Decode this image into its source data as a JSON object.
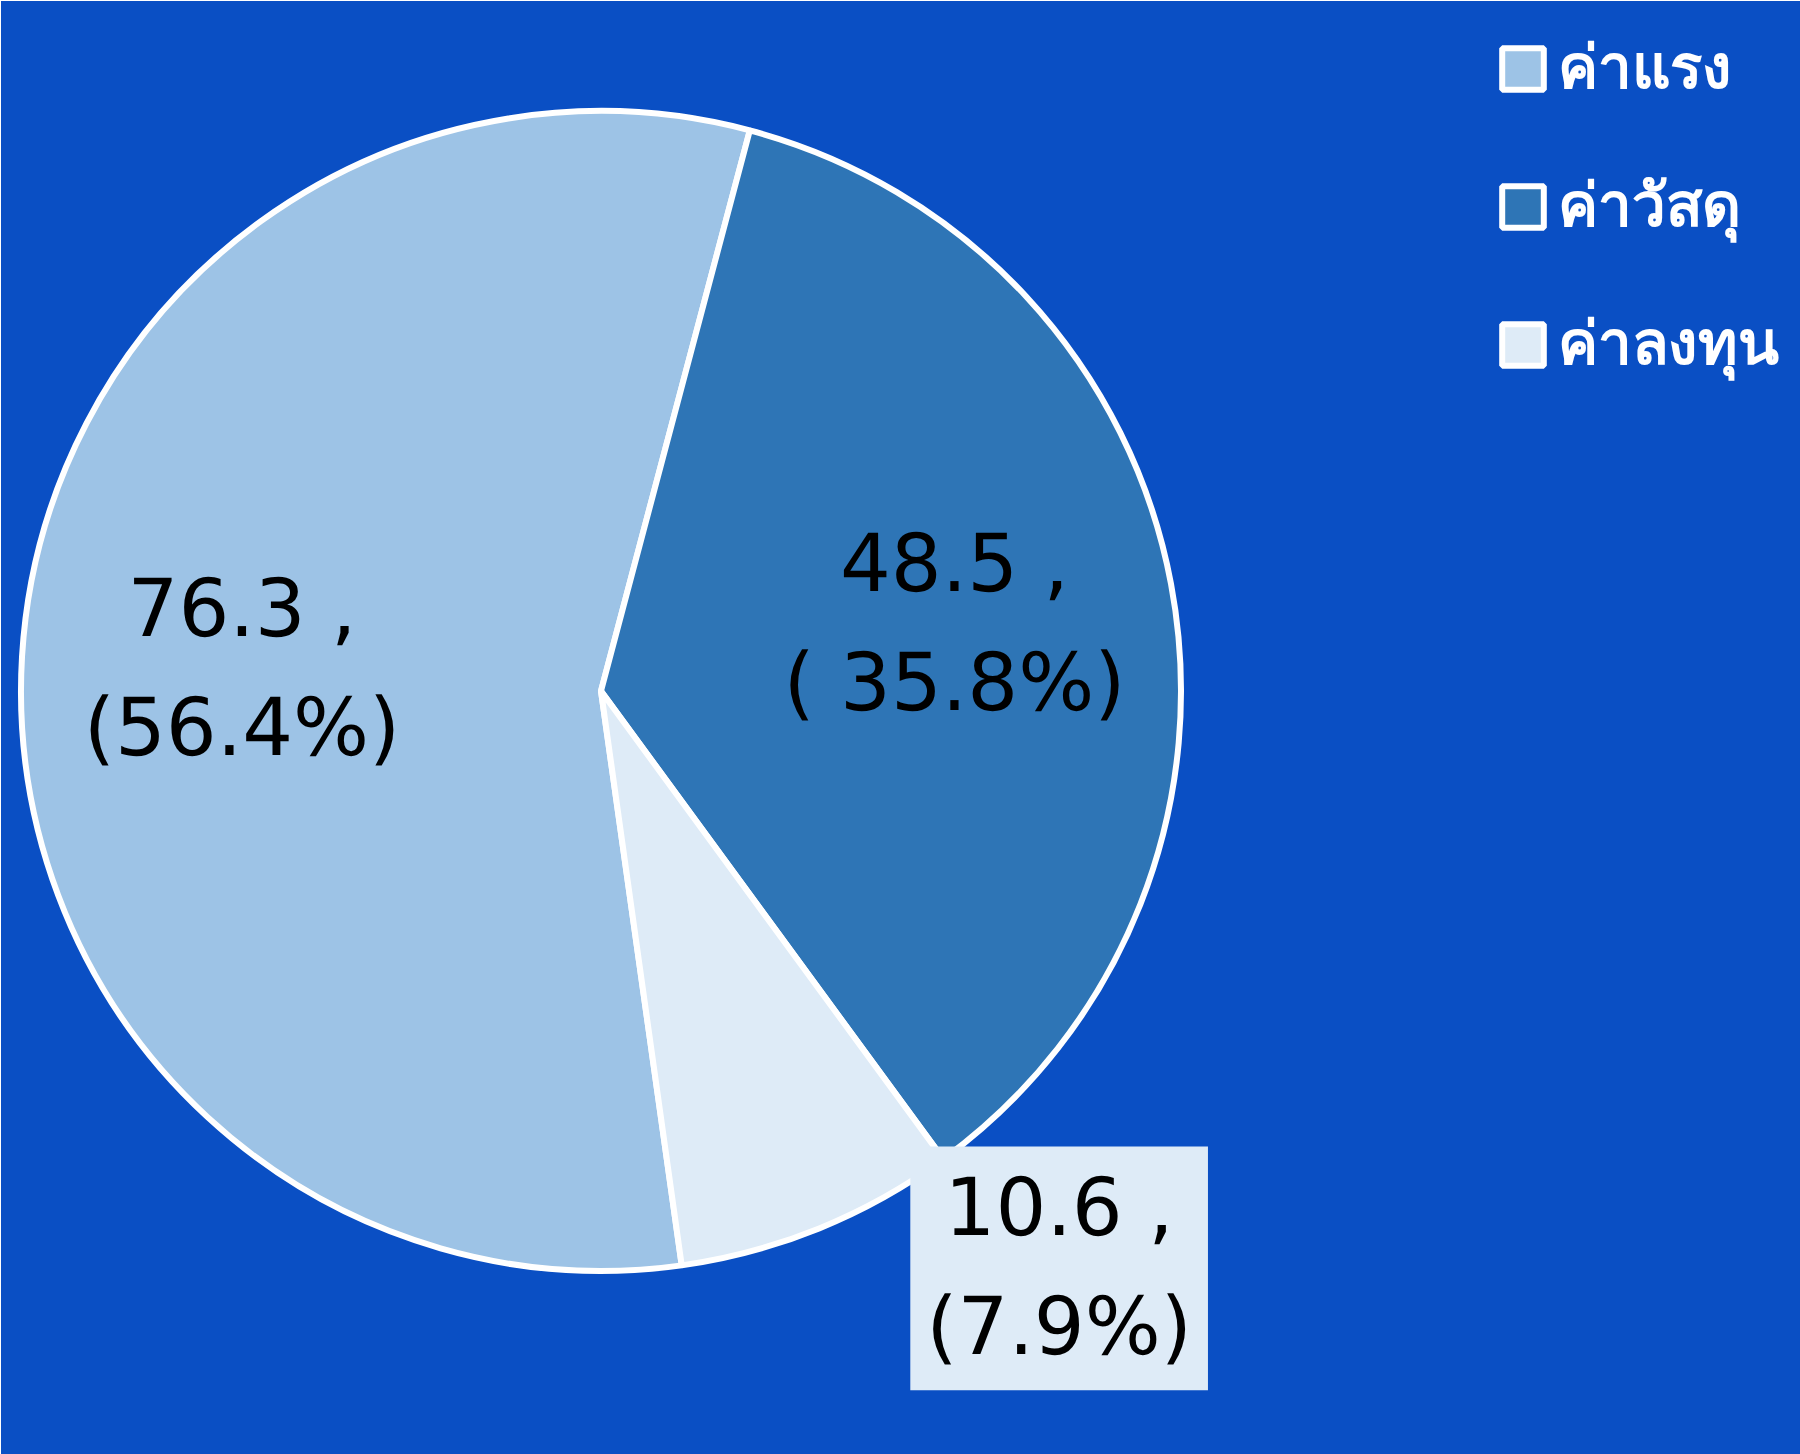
{
  "chart_data": {
    "type": "pie",
    "categories": [
      "ค่าแรง",
      "ค่าวัสดุ",
      "ค่าลงทุน"
    ],
    "values": [
      76.3,
      48.5,
      10.6
    ],
    "colors": [
      "#9dc3e6",
      "#2e75b6",
      "#deebf7"
    ],
    "value_labels": [
      "76.3 ,\n(56.4%)",
      "48.5 ,\n( 35.8%)",
      "10.6 ,\n(7.9%)"
    ],
    "legend": "top right"
  }
}
